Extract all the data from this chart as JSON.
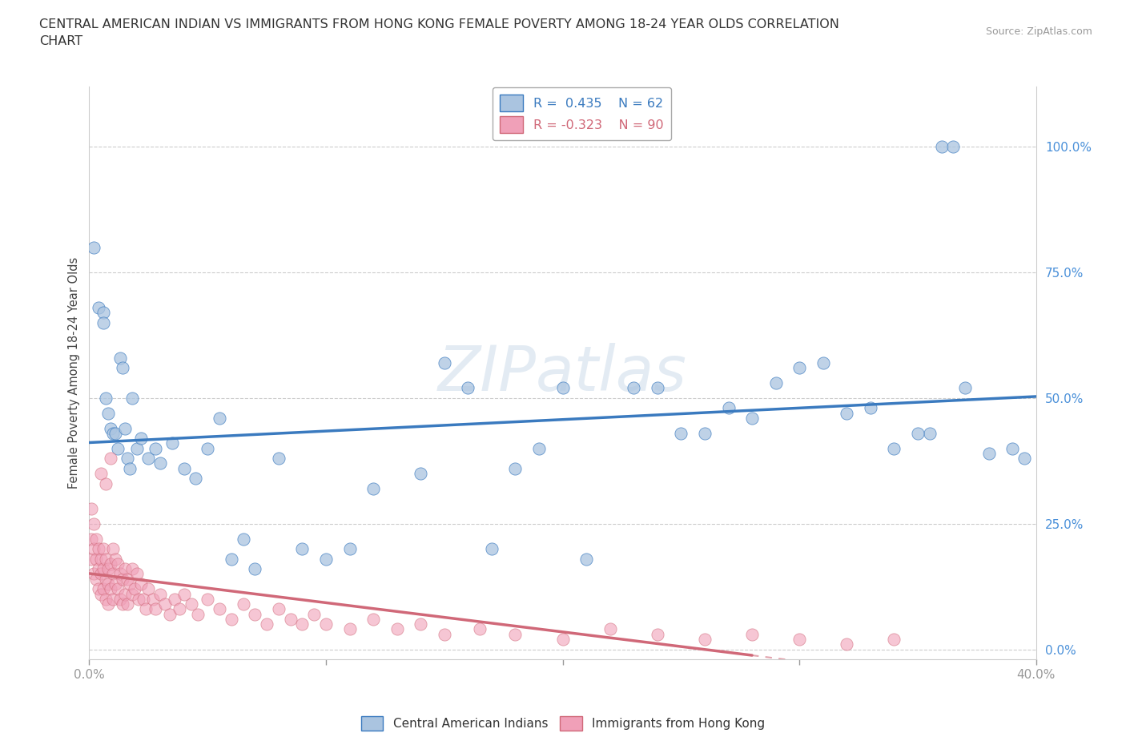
{
  "title": "CENTRAL AMERICAN INDIAN VS IMMIGRANTS FROM HONG KONG FEMALE POVERTY AMONG 18-24 YEAR OLDS CORRELATION\nCHART",
  "source": "Source: ZipAtlas.com",
  "ylabel": "Female Poverty Among 18-24 Year Olds",
  "xlim": [
    0.0,
    0.4
  ],
  "ylim": [
    -0.02,
    1.12
  ],
  "yticks": [
    0.0,
    0.25,
    0.5,
    0.75,
    1.0
  ],
  "ytick_labels": [
    "0.0%",
    "25.0%",
    "50.0%",
    "75.0%",
    "100.0%"
  ],
  "xticks": [
    0.0,
    0.1,
    0.2,
    0.3,
    0.4
  ],
  "xtick_labels": [
    "0.0%",
    "",
    "",
    "",
    "40.0%"
  ],
  "blue_R": 0.435,
  "blue_N": 62,
  "pink_R": -0.323,
  "pink_N": 90,
  "blue_color": "#aac4e0",
  "pink_color": "#f0a0b8",
  "blue_line_color": "#3a7abf",
  "pink_line_color": "#d06878",
  "watermark": "ZIPatlas",
  "legend1_label": "Central American Indians",
  "legend2_label": "Immigrants from Hong Kong",
  "blue_x": [
    0.002,
    0.004,
    0.006,
    0.006,
    0.007,
    0.008,
    0.009,
    0.01,
    0.011,
    0.012,
    0.013,
    0.014,
    0.015,
    0.016,
    0.017,
    0.018,
    0.02,
    0.022,
    0.025,
    0.028,
    0.03,
    0.035,
    0.04,
    0.045,
    0.05,
    0.055,
    0.06,
    0.065,
    0.07,
    0.08,
    0.09,
    0.1,
    0.11,
    0.12,
    0.15,
    0.17,
    0.19,
    0.21,
    0.24,
    0.26,
    0.28,
    0.3,
    0.32,
    0.34,
    0.355,
    0.36,
    0.365,
    0.37,
    0.38,
    0.39,
    0.395,
    0.35,
    0.33,
    0.31,
    0.29,
    0.27,
    0.25,
    0.23,
    0.2,
    0.18,
    0.16,
    0.14
  ],
  "blue_y": [
    0.8,
    0.68,
    0.67,
    0.65,
    0.5,
    0.47,
    0.44,
    0.43,
    0.43,
    0.4,
    0.58,
    0.56,
    0.44,
    0.38,
    0.36,
    0.5,
    0.4,
    0.42,
    0.38,
    0.4,
    0.37,
    0.41,
    0.36,
    0.34,
    0.4,
    0.46,
    0.18,
    0.22,
    0.16,
    0.38,
    0.2,
    0.18,
    0.2,
    0.32,
    0.57,
    0.2,
    0.4,
    0.18,
    0.52,
    0.43,
    0.46,
    0.56,
    0.47,
    0.4,
    0.43,
    1.0,
    1.0,
    0.52,
    0.39,
    0.4,
    0.38,
    0.43,
    0.48,
    0.57,
    0.53,
    0.48,
    0.43,
    0.52,
    0.52,
    0.36,
    0.52,
    0.35
  ],
  "pink_x": [
    0.001,
    0.001,
    0.001,
    0.002,
    0.002,
    0.002,
    0.003,
    0.003,
    0.003,
    0.004,
    0.004,
    0.004,
    0.005,
    0.005,
    0.005,
    0.006,
    0.006,
    0.006,
    0.007,
    0.007,
    0.007,
    0.008,
    0.008,
    0.008,
    0.009,
    0.009,
    0.01,
    0.01,
    0.01,
    0.011,
    0.011,
    0.012,
    0.012,
    0.013,
    0.013,
    0.014,
    0.014,
    0.015,
    0.015,
    0.016,
    0.016,
    0.017,
    0.018,
    0.018,
    0.019,
    0.02,
    0.021,
    0.022,
    0.023,
    0.024,
    0.025,
    0.027,
    0.028,
    0.03,
    0.032,
    0.034,
    0.036,
    0.038,
    0.04,
    0.043,
    0.046,
    0.05,
    0.055,
    0.06,
    0.065,
    0.07,
    0.075,
    0.08,
    0.085,
    0.09,
    0.095,
    0.1,
    0.11,
    0.12,
    0.13,
    0.14,
    0.15,
    0.165,
    0.18,
    0.2,
    0.22,
    0.24,
    0.26,
    0.28,
    0.3,
    0.32,
    0.34,
    0.005,
    0.007,
    0.009
  ],
  "pink_y": [
    0.28,
    0.22,
    0.18,
    0.25,
    0.2,
    0.15,
    0.22,
    0.18,
    0.14,
    0.2,
    0.16,
    0.12,
    0.18,
    0.15,
    0.11,
    0.2,
    0.16,
    0.12,
    0.18,
    0.14,
    0.1,
    0.16,
    0.13,
    0.09,
    0.17,
    0.12,
    0.2,
    0.15,
    0.1,
    0.18,
    0.13,
    0.17,
    0.12,
    0.15,
    0.1,
    0.14,
    0.09,
    0.16,
    0.11,
    0.14,
    0.09,
    0.13,
    0.16,
    0.11,
    0.12,
    0.15,
    0.1,
    0.13,
    0.1,
    0.08,
    0.12,
    0.1,
    0.08,
    0.11,
    0.09,
    0.07,
    0.1,
    0.08,
    0.11,
    0.09,
    0.07,
    0.1,
    0.08,
    0.06,
    0.09,
    0.07,
    0.05,
    0.08,
    0.06,
    0.05,
    0.07,
    0.05,
    0.04,
    0.06,
    0.04,
    0.05,
    0.03,
    0.04,
    0.03,
    0.02,
    0.04,
    0.03,
    0.02,
    0.03,
    0.02,
    0.01,
    0.02,
    0.35,
    0.33,
    0.38
  ]
}
